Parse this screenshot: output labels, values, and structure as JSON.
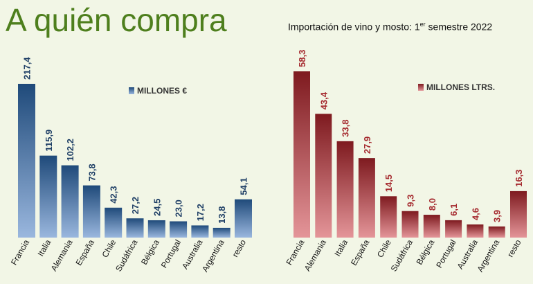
{
  "page": {
    "title": "A quién compra",
    "subtitle": {
      "prefix": "Importación de vino y mosto: 1",
      "sup": "er",
      "suffix": " semestre 2022"
    }
  },
  "chart_data": [
    {
      "type": "bar",
      "categories": [
        "Francia",
        "Italia",
        "Alemania",
        "España",
        "Chile",
        "Sudáfrica",
        "Bélgica",
        "Portugal",
        "Australia",
        "Argentina",
        "resto"
      ],
      "values": [
        217.4,
        115.9,
        102.2,
        73.8,
        42.3,
        27.2,
        24.5,
        23.0,
        17.2,
        13.8,
        54.1
      ],
      "value_labels": [
        "217,4",
        "115,9",
        "102,2",
        "73,8",
        "42,3",
        "27,2",
        "24,5",
        "23,0",
        "17,2",
        "13,8",
        "54,1"
      ],
      "legend": "MILLONES €",
      "legend_position": "top-right",
      "ylim": [
        0,
        217.4
      ],
      "grid": false,
      "colors": {
        "bar_top": "#1f4a7a",
        "bar_bottom": "#9ab7de",
        "label": "#1f3f66"
      }
    },
    {
      "type": "bar",
      "categories": [
        "Francia",
        "Alemania",
        "Italia",
        "España",
        "Chile",
        "Sudáfrica",
        "Bélgica",
        "Portugal",
        "Australia",
        "Argentina",
        "resto"
      ],
      "values": [
        58.3,
        43.4,
        33.8,
        27.9,
        14.5,
        9.3,
        8.0,
        6.1,
        4.6,
        3.9,
        16.3
      ],
      "value_labels": [
        "58,3",
        "43,4",
        "33,8",
        "27,9",
        "14,5",
        "9,3",
        "8,0",
        "6,1",
        "4,6",
        "3,9",
        "16,3"
      ],
      "legend": "MILLONES LTRS.",
      "legend_position": "top-right",
      "ylim": [
        0,
        58.3
      ],
      "grid": false,
      "colors": {
        "bar_top": "#7e1a1f",
        "bar_bottom": "#e49599",
        "label": "#a52a2f"
      }
    }
  ]
}
